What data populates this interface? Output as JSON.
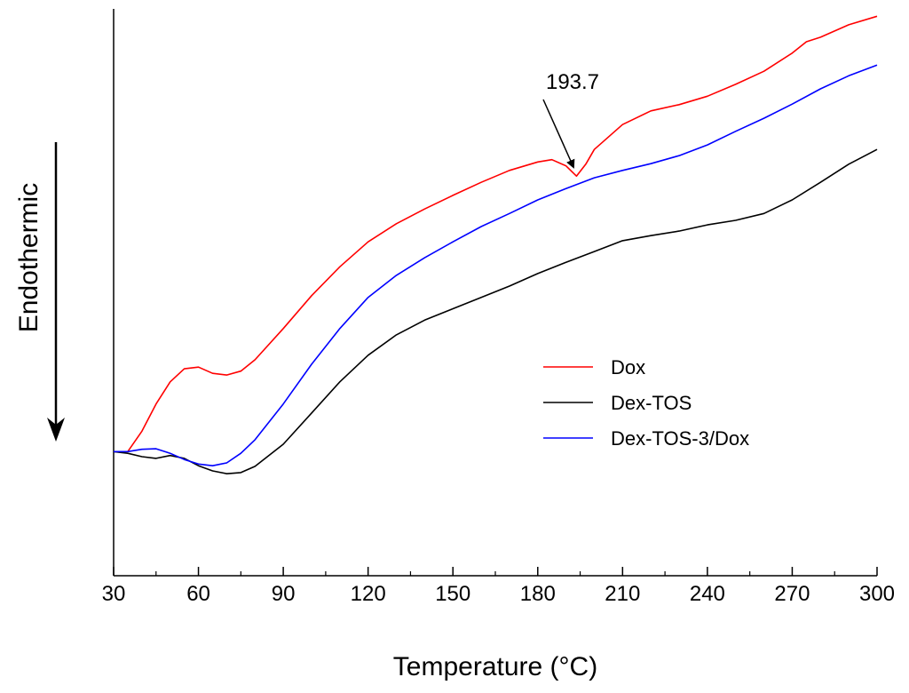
{
  "chart_data": {
    "type": "line",
    "x_label": "Temperature (°C)",
    "y_label": "Endothermic",
    "xlim": [
      30,
      300
    ],
    "xticks": [
      30,
      60,
      90,
      120,
      150,
      180,
      210,
      240,
      270,
      300
    ],
    "ylim": [
      0,
      100
    ],
    "annotation": {
      "text": "193.7",
      "x": 193.7
    },
    "legend": "right",
    "series": [
      {
        "name": "Dox",
        "color": "#ff0000",
        "x": [
          30,
          35,
          40,
          45,
          50,
          55,
          60,
          65,
          70,
          75,
          80,
          90,
          100,
          110,
          120,
          130,
          140,
          150,
          160,
          170,
          180,
          185,
          190,
          193.7,
          197,
          200,
          210,
          220,
          230,
          240,
          250,
          260,
          270,
          275,
          280,
          290,
          300
        ],
        "values": [
          21.9,
          21.9,
          25.5,
          30.3,
          34.2,
          36.5,
          36.8,
          35.7,
          35.4,
          36.1,
          38.1,
          43.6,
          49.4,
          54.5,
          58.9,
          62.1,
          64.7,
          67.1,
          69.4,
          71.5,
          73.0,
          73.4,
          72.3,
          70.5,
          72.6,
          75.2,
          79.6,
          82.0,
          83.1,
          84.6,
          86.7,
          89.0,
          92.2,
          94.2,
          95.0,
          97.2,
          98.7
        ]
      },
      {
        "name": "Dex-TOS",
        "color": "#000000",
        "x": [
          30,
          35,
          40,
          45,
          50,
          55,
          60,
          65,
          70,
          75,
          80,
          90,
          100,
          110,
          120,
          130,
          140,
          150,
          160,
          170,
          180,
          190,
          200,
          210,
          220,
          230,
          240,
          250,
          260,
          270,
          280,
          290,
          300
        ],
        "values": [
          21.9,
          21.6,
          21.0,
          20.7,
          21.2,
          20.7,
          19.4,
          18.5,
          18.0,
          18.2,
          19.3,
          23.2,
          28.7,
          34.2,
          38.9,
          42.5,
          45.1,
          47.1,
          49.1,
          51.1,
          53.3,
          55.3,
          57.2,
          59.1,
          60.0,
          60.8,
          61.9,
          62.7,
          63.9,
          66.3,
          69.4,
          72.6,
          75.2
        ]
      },
      {
        "name": "Dex-TOS-3/Dox",
        "color": "#0000ff",
        "x": [
          30,
          35,
          40,
          45,
          50,
          55,
          60,
          65,
          70,
          75,
          80,
          90,
          100,
          110,
          120,
          130,
          140,
          150,
          160,
          170,
          180,
          190,
          200,
          210,
          220,
          230,
          240,
          250,
          260,
          270,
          280,
          290,
          300
        ],
        "values": [
          21.9,
          21.9,
          22.3,
          22.4,
          21.6,
          20.5,
          19.7,
          19.4,
          19.9,
          21.6,
          24.0,
          30.3,
          37.3,
          43.6,
          49.1,
          53.0,
          56.1,
          58.9,
          61.6,
          63.9,
          66.3,
          68.3,
          70.2,
          71.5,
          72.7,
          74.1,
          76.0,
          78.4,
          80.7,
          83.2,
          85.9,
          88.2,
          90.1
        ]
      }
    ]
  }
}
